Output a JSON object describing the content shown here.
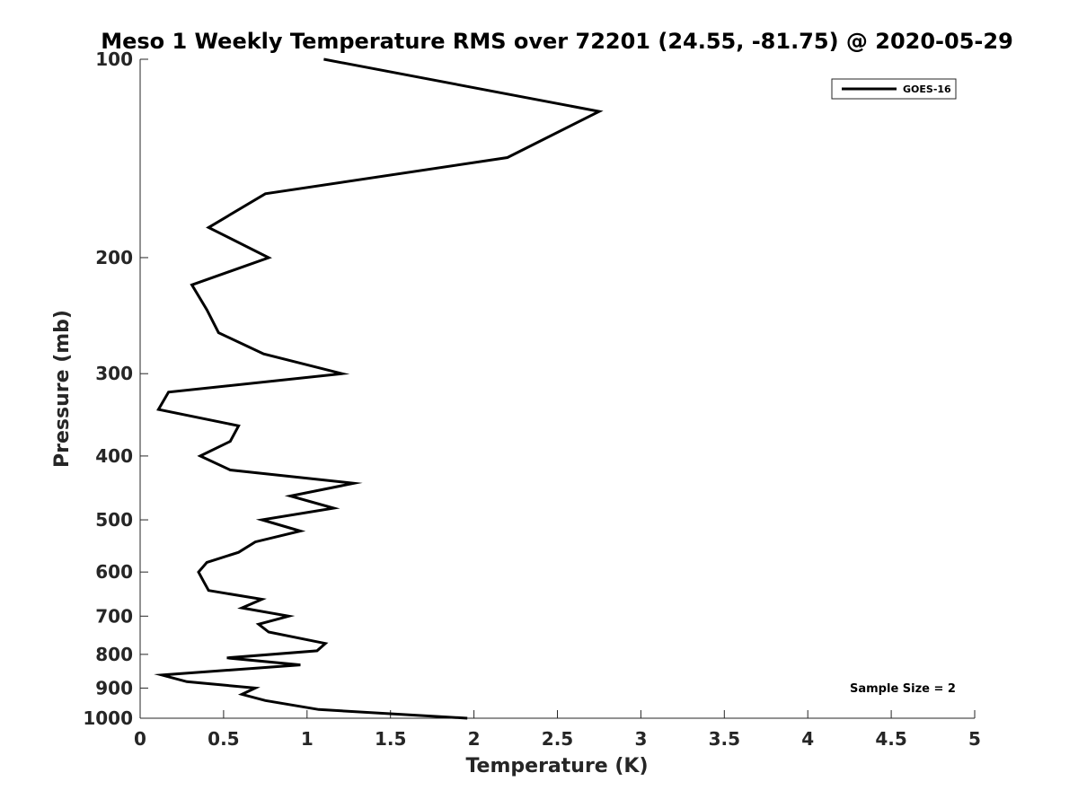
{
  "chart_data": {
    "type": "line",
    "title": "Meso 1 Weekly Temperature RMS over 72201 (24.55, -81.75) @ 2020-05-29",
    "xlabel": "Temperature (K)",
    "ylabel": "Pressure (mb)",
    "xlim": [
      0,
      5
    ],
    "ylim": [
      100,
      1000
    ],
    "yscale": "log",
    "yreversed": true,
    "xticks": [
      0,
      0.5,
      1,
      1.5,
      2,
      2.5,
      3,
      3.5,
      4,
      4.5,
      5
    ],
    "xtick_labels": [
      "0",
      "0.5",
      "1",
      "1.5",
      "2",
      "2.5",
      "3",
      "3.5",
      "4",
      "4.5",
      "5"
    ],
    "yticks": [
      100,
      200,
      300,
      400,
      500,
      600,
      700,
      800,
      900,
      1000
    ],
    "ytick_labels": [
      "100",
      "200",
      "300",
      "400",
      "500",
      "600",
      "700",
      "800",
      "900",
      "1000"
    ],
    "grid": false,
    "legend_position": "top-right",
    "series": [
      {
        "name": "GOES-16",
        "color": "#000000",
        "x": [
          1.1,
          2.75,
          2.2,
          0.75,
          0.41,
          0.77,
          0.31,
          0.4,
          0.47,
          0.74,
          1.21,
          0.17,
          0.11,
          0.59,
          0.54,
          0.36,
          0.54,
          1.28,
          0.9,
          1.16,
          0.73,
          0.96,
          0.69,
          0.59,
          0.4,
          0.35,
          0.38,
          0.41,
          0.73,
          0.61,
          0.89,
          0.71,
          0.77,
          1.11,
          1.06,
          0.52,
          0.96,
          0.13,
          0.28,
          0.69,
          0.61,
          0.75,
          1.07,
          1.96
        ],
        "y": [
          100,
          120,
          141,
          160,
          180,
          200,
          220,
          240,
          260,
          280,
          300,
          320,
          340,
          360,
          380,
          400,
          420,
          440,
          460,
          480,
          500,
          520,
          540,
          560,
          580,
          600,
          620,
          640,
          660,
          680,
          700,
          720,
          740,
          770,
          790,
          810,
          830,
          860,
          880,
          900,
          920,
          940,
          970,
          1000
        ]
      }
    ]
  },
  "annotation": "Sample Size = 2",
  "legend": {
    "label": "GOES-16"
  }
}
